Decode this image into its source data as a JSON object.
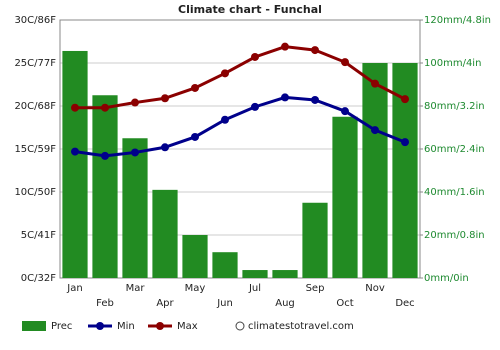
{
  "chart_data": {
    "type": "combo",
    "title": "Climate chart - Funchal",
    "categories": [
      "Jan",
      "Feb",
      "Mar",
      "Apr",
      "May",
      "Jun",
      "Jul",
      "Aug",
      "Sep",
      "Oct",
      "Nov",
      "Dec"
    ],
    "series": [
      {
        "name": "Prec",
        "type": "bar",
        "axis": "y2",
        "color": "#228b22",
        "values": [
          105.6,
          85,
          65,
          41,
          20,
          12,
          3.7,
          3.7,
          35,
          75,
          100,
          100
        ]
      },
      {
        "name": "Min",
        "type": "line",
        "color": "#00008b",
        "values": [
          14.7,
          14.2,
          14.6,
          15.2,
          16.4,
          18.4,
          19.9,
          21.0,
          20.7,
          19.4,
          17.2,
          15.8
        ]
      },
      {
        "name": "Max",
        "type": "line",
        "color": "#8b0000",
        "values": [
          19.8,
          19.8,
          20.4,
          20.9,
          22.1,
          23.8,
          25.7,
          26.9,
          26.5,
          25.1,
          22.6,
          20.8
        ]
      }
    ],
    "ylim": [
      0,
      30
    ],
    "yticks": [
      {
        "value": 0,
        "label": "0C/32F"
      },
      {
        "value": 5,
        "label": "5C/41F"
      },
      {
        "value": 10,
        "label": "10C/50F"
      },
      {
        "value": 15,
        "label": "15C/59F"
      },
      {
        "value": 20,
        "label": "20C/68F"
      },
      {
        "value": 25,
        "label": "25C/77F"
      },
      {
        "value": 30,
        "label": "30C/86F"
      }
    ],
    "y2lim": [
      0,
      120
    ],
    "y2ticks": [
      {
        "value": 0,
        "label": "0mm/0in"
      },
      {
        "value": 20,
        "label": "20mm/0.8in"
      },
      {
        "value": 40,
        "label": "40mm/1.6in"
      },
      {
        "value": 60,
        "label": "60mm/2.4in"
      },
      {
        "value": 80,
        "label": "80mm/3.2in"
      },
      {
        "value": 100,
        "label": "100mm/4in"
      },
      {
        "value": 120,
        "label": "120mm/4.8in"
      }
    ],
    "grid": true,
    "source": "climatestotravel.com"
  }
}
